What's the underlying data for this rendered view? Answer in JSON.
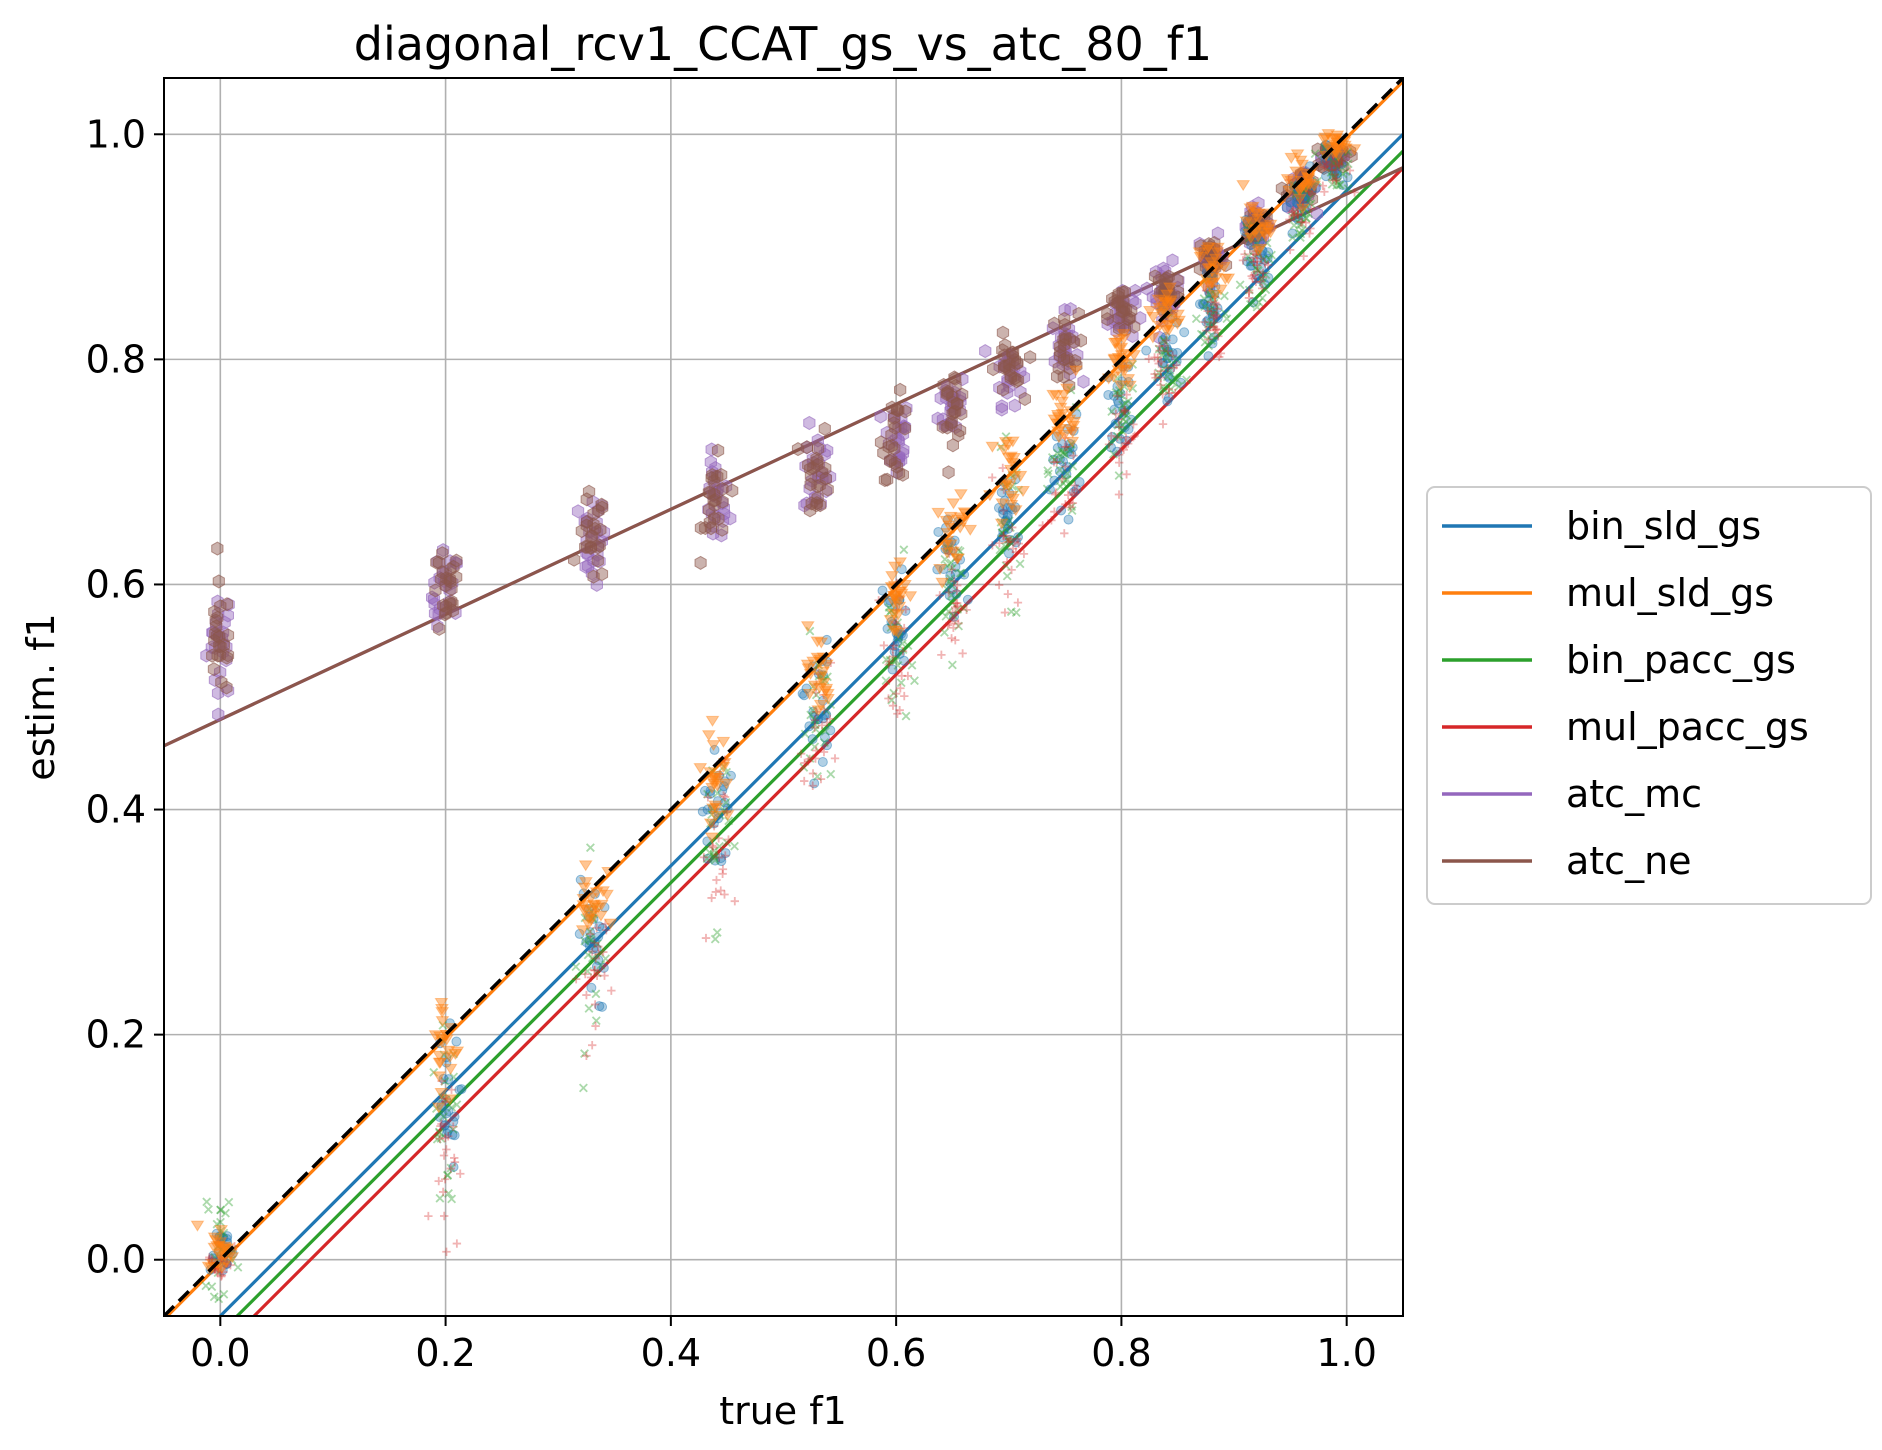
{
  "chart_data": {
    "type": "scatter",
    "title": "diagonal_rcv1_CCAT_gs_vs_atc_80_f1",
    "xlabel": "true f1",
    "ylabel": "estim. f1",
    "xlim": [
      -0.05,
      1.05
    ],
    "ylim": [
      -0.05,
      1.05
    ],
    "xticks": [
      0.0,
      0.2,
      0.4,
      0.6,
      0.8,
      1.0
    ],
    "yticks": [
      0.0,
      0.2,
      0.4,
      0.6,
      0.8,
      1.0
    ],
    "xtick_labels": [
      "0.0",
      "0.2",
      "0.4",
      "0.6",
      "0.8",
      "1.0"
    ],
    "ytick_labels": [
      "0.0",
      "0.2",
      "0.4",
      "0.6",
      "0.8",
      "1.0"
    ],
    "grid": true,
    "legend_position": "outside right, vertically centered",
    "diagonal": {
      "style": "dashed",
      "color": "#000000",
      "slope": 1,
      "intercept": 0
    },
    "cluster_x": [
      0.0,
      0.2,
      0.33,
      0.44,
      0.53,
      0.6,
      0.65,
      0.7,
      0.75,
      0.8,
      0.84,
      0.88,
      0.92,
      0.96,
      0.99
    ],
    "series": [
      {
        "name": "bin_sld_gs",
        "color": "#1f77b4",
        "marker": "circle",
        "fit": {
          "slope": 1.0,
          "intercept": -0.05
        },
        "clusters": [
          [
            0.0,
            0.01,
            0.01
          ],
          [
            0.2,
            0.14,
            0.03
          ],
          [
            0.33,
            0.28,
            0.03
          ],
          [
            0.44,
            0.4,
            0.03
          ],
          [
            0.53,
            0.49,
            0.03
          ],
          [
            0.6,
            0.56,
            0.025
          ],
          [
            0.65,
            0.61,
            0.025
          ],
          [
            0.7,
            0.66,
            0.02
          ],
          [
            0.75,
            0.71,
            0.02
          ],
          [
            0.8,
            0.76,
            0.02
          ],
          [
            0.84,
            0.8,
            0.02
          ],
          [
            0.88,
            0.85,
            0.015
          ],
          [
            0.92,
            0.89,
            0.015
          ],
          [
            0.96,
            0.94,
            0.01
          ],
          [
            0.99,
            0.97,
            0.01
          ]
        ]
      },
      {
        "name": "mul_sld_gs",
        "color": "#ff7f0e",
        "marker": "triangle-down",
        "fit": {
          "slope": 1.0,
          "intercept": -0.003
        },
        "clusters": [
          [
            0.0,
            0.01,
            0.01
          ],
          [
            0.2,
            0.19,
            0.025
          ],
          [
            0.33,
            0.32,
            0.025
          ],
          [
            0.44,
            0.43,
            0.02
          ],
          [
            0.53,
            0.52,
            0.02
          ],
          [
            0.6,
            0.59,
            0.02
          ],
          [
            0.65,
            0.65,
            0.02
          ],
          [
            0.7,
            0.7,
            0.015
          ],
          [
            0.75,
            0.75,
            0.015
          ],
          [
            0.8,
            0.8,
            0.015
          ],
          [
            0.84,
            0.84,
            0.012
          ],
          [
            0.88,
            0.88,
            0.012
          ],
          [
            0.92,
            0.92,
            0.01
          ],
          [
            0.96,
            0.96,
            0.01
          ],
          [
            0.99,
            0.99,
            0.006
          ]
        ]
      },
      {
        "name": "bin_pacc_gs",
        "color": "#2ca02c",
        "marker": "x",
        "fit": {
          "slope": 1.0,
          "intercept": -0.065
        },
        "clusters": [
          [
            0.0,
            0.02,
            0.025
          ],
          [
            0.2,
            0.12,
            0.04
          ],
          [
            0.33,
            0.27,
            0.04
          ],
          [
            0.44,
            0.38,
            0.04
          ],
          [
            0.53,
            0.48,
            0.035
          ],
          [
            0.6,
            0.54,
            0.035
          ],
          [
            0.65,
            0.6,
            0.03
          ],
          [
            0.7,
            0.65,
            0.03
          ],
          [
            0.75,
            0.7,
            0.025
          ],
          [
            0.8,
            0.75,
            0.025
          ],
          [
            0.84,
            0.79,
            0.02
          ],
          [
            0.88,
            0.84,
            0.02
          ],
          [
            0.92,
            0.88,
            0.015
          ],
          [
            0.96,
            0.93,
            0.015
          ],
          [
            0.99,
            0.97,
            0.01
          ]
        ]
      },
      {
        "name": "mul_pacc_gs",
        "color": "#d62728",
        "marker": "plus",
        "fit": {
          "slope": 1.0,
          "intercept": -0.08
        },
        "clusters": [
          [
            0.0,
            0.0,
            0.01
          ],
          [
            0.2,
            0.1,
            0.04
          ],
          [
            0.33,
            0.25,
            0.04
          ],
          [
            0.44,
            0.36,
            0.04
          ],
          [
            0.53,
            0.46,
            0.035
          ],
          [
            0.6,
            0.53,
            0.035
          ],
          [
            0.65,
            0.58,
            0.03
          ],
          [
            0.7,
            0.64,
            0.03
          ],
          [
            0.75,
            0.69,
            0.025
          ],
          [
            0.8,
            0.74,
            0.025
          ],
          [
            0.84,
            0.79,
            0.02
          ],
          [
            0.88,
            0.84,
            0.02
          ],
          [
            0.92,
            0.88,
            0.015
          ],
          [
            0.96,
            0.93,
            0.015
          ],
          [
            0.99,
            0.97,
            0.01
          ]
        ]
      },
      {
        "name": "atc_mc",
        "color": "#9467bd",
        "marker": "hexagon",
        "fit": {
          "slope": 0.467,
          "intercept": 0.48
        },
        "clusters": [
          [
            0.0,
            0.55,
            0.025
          ],
          [
            0.2,
            0.59,
            0.02
          ],
          [
            0.33,
            0.64,
            0.02
          ],
          [
            0.44,
            0.67,
            0.02
          ],
          [
            0.53,
            0.7,
            0.02
          ],
          [
            0.6,
            0.73,
            0.018
          ],
          [
            0.65,
            0.76,
            0.015
          ],
          [
            0.7,
            0.79,
            0.015
          ],
          [
            0.75,
            0.81,
            0.015
          ],
          [
            0.8,
            0.84,
            0.012
          ],
          [
            0.84,
            0.86,
            0.012
          ],
          [
            0.88,
            0.89,
            0.01
          ],
          [
            0.92,
            0.92,
            0.008
          ],
          [
            0.96,
            0.95,
            0.008
          ],
          [
            0.99,
            0.98,
            0.006
          ]
        ]
      },
      {
        "name": "atc_ne",
        "color": "#8c564b",
        "marker": "hexagon",
        "fit": {
          "slope": 0.467,
          "intercept": 0.48
        },
        "clusters": [
          [
            0.0,
            0.55,
            0.025
          ],
          [
            0.2,
            0.59,
            0.02
          ],
          [
            0.33,
            0.64,
            0.02
          ],
          [
            0.44,
            0.67,
            0.02
          ],
          [
            0.53,
            0.7,
            0.02
          ],
          [
            0.6,
            0.73,
            0.018
          ],
          [
            0.65,
            0.76,
            0.015
          ],
          [
            0.7,
            0.79,
            0.015
          ],
          [
            0.75,
            0.81,
            0.015
          ],
          [
            0.8,
            0.84,
            0.012
          ],
          [
            0.84,
            0.86,
            0.012
          ],
          [
            0.88,
            0.89,
            0.01
          ],
          [
            0.92,
            0.92,
            0.008
          ],
          [
            0.96,
            0.95,
            0.008
          ],
          [
            0.99,
            0.98,
            0.006
          ]
        ]
      }
    ]
  }
}
